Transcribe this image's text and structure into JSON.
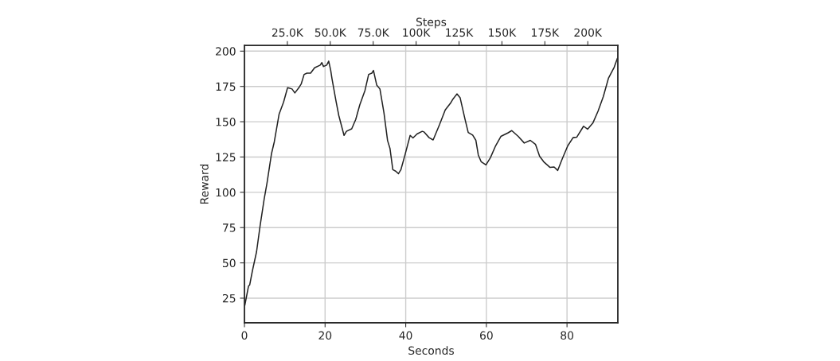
{
  "chart_data": {
    "type": "line",
    "xlabel": "Seconds",
    "ylabel": "Reward",
    "x2label": "Steps",
    "xlim": [
      0,
      92.6
    ],
    "xticks": [
      0,
      20,
      40,
      60,
      80
    ],
    "ylim": [
      7.6,
      204
    ],
    "yticks": [
      25,
      50,
      75,
      100,
      125,
      150,
      175,
      200
    ],
    "x2lim": [
      0,
      217500
    ],
    "x2ticks": [
      {
        "value": 25000,
        "label": "25.0K"
      },
      {
        "value": 50000,
        "label": "50.0K"
      },
      {
        "value": 75000,
        "label": "75.0K"
      },
      {
        "value": 100000,
        "label": "100K"
      },
      {
        "value": 125000,
        "label": "125K"
      },
      {
        "value": 150000,
        "label": "150K"
      },
      {
        "value": 175000,
        "label": "175K"
      },
      {
        "value": 200000,
        "label": "200K"
      }
    ],
    "grid": true,
    "marker": "none",
    "line_style": "solid",
    "series": [
      {
        "color": "#222222",
        "x": [
          0.1,
          1.0,
          1.3,
          2.0,
          3.0,
          3.9,
          4.9,
          5.6,
          6.3,
          6.7,
          7.4,
          8.6,
          9.7,
          10.7,
          11.8,
          12.5,
          13.5,
          14.1,
          14.8,
          15.5,
          16.4,
          17.4,
          18.8,
          19.2,
          19.6,
          20.4,
          20.9,
          21.4,
          21.7,
          22.7,
          23.4,
          24.7,
          25.3,
          26.6,
          27.6,
          28.6,
          29.9,
          30.8,
          31.6,
          32.0,
          32.8,
          33.6,
          34.6,
          35.5,
          36.1,
          36.8,
          37.5,
          38.2,
          38.8,
          39.8,
          41.1,
          41.8,
          42.8,
          44.1,
          44.5,
          45.8,
          46.8,
          48.4,
          49.8,
          51.1,
          51.7,
          52.7,
          53.5,
          54.7,
          55.5,
          56.6,
          57.4,
          58.0,
          58.7,
          59.9,
          61.0,
          62.3,
          63.6,
          65.3,
          66.3,
          67.9,
          69.4,
          70.9,
          72.2,
          73.2,
          74.2,
          75.8,
          76.8,
          77.7,
          78.8,
          80.2,
          81.5,
          82.4,
          84.1,
          85.1,
          86.4,
          87.7,
          89.0,
          90.3,
          91.7,
          92.5
        ],
        "values": [
          20,
          33.4,
          34.4,
          44.7,
          57.8,
          76.6,
          95.3,
          106.6,
          119.7,
          127.2,
          135.7,
          155.4,
          163.8,
          174.1,
          173.2,
          170.4,
          174.1,
          176.9,
          183.5,
          184.4,
          184.4,
          188.2,
          190.1,
          191.9,
          189.1,
          190.1,
          192.9,
          186.3,
          180.7,
          164.7,
          154.4,
          140.3,
          143.2,
          145,
          151.6,
          161.9,
          172.2,
          183.5,
          184.4,
          186.3,
          176,
          173.2,
          156.3,
          136.6,
          131,
          116,
          115,
          113.2,
          116,
          126.3,
          140.3,
          138.5,
          141.3,
          143.2,
          142.8,
          138.7,
          137.1,
          148.1,
          158.4,
          163.1,
          166,
          169.7,
          166.9,
          151.8,
          142.4,
          140.5,
          136.8,
          126.4,
          121.7,
          119.4,
          124.5,
          133,
          139.6,
          142,
          143.7,
          139.6,
          134.9,
          136.8,
          133.9,
          125.5,
          121.7,
          117.6,
          117.9,
          115.5,
          123.6,
          133,
          138.7,
          139,
          146.8,
          144.7,
          149,
          157.5,
          167.8,
          181,
          188.6,
          195
        ]
      }
    ]
  }
}
